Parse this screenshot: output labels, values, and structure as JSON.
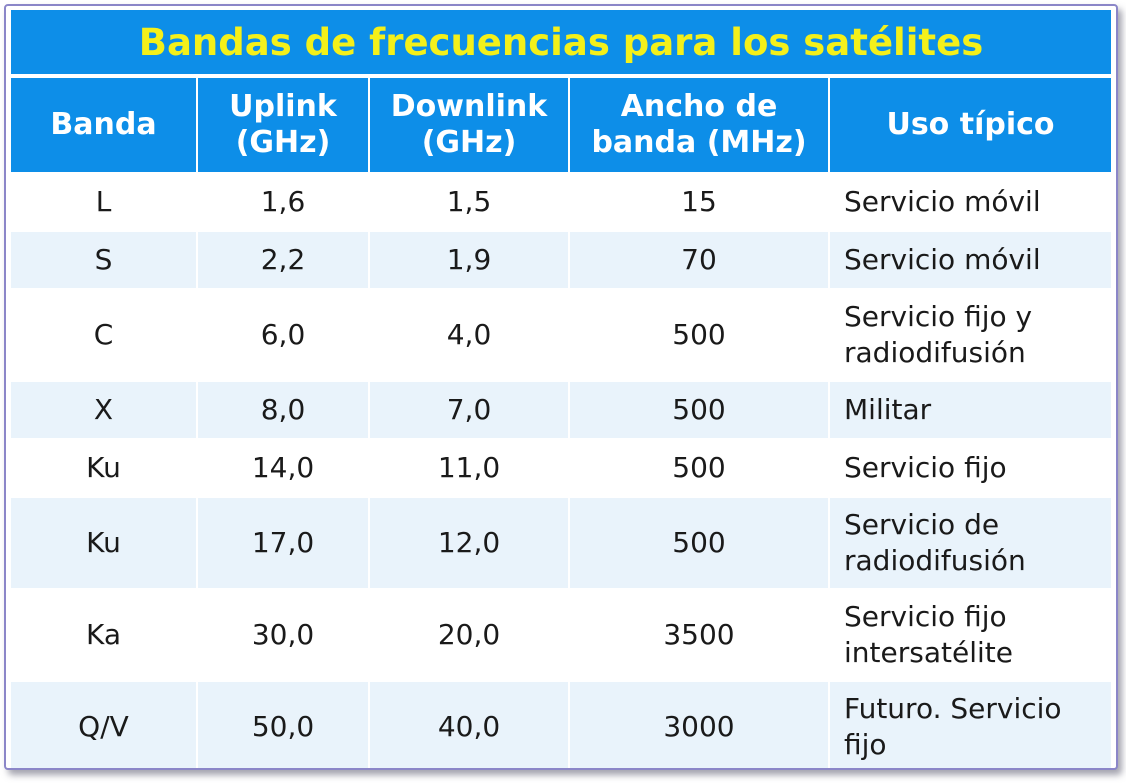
{
  "title": "Bandas de frecuencias para los satélites",
  "headers": [
    "Banda",
    "Uplink\n(GHz)",
    "Downlink\n(GHz)",
    "Ancho de\nbanda (MHz)",
    "Uso típico"
  ],
  "rows": [
    {
      "band": "L",
      "uplink": "1,6",
      "downlink": "1,5",
      "bandwidth": "15",
      "use": "Servicio móvil"
    },
    {
      "band": "S",
      "uplink": "2,2",
      "downlink": "1,9",
      "bandwidth": "70",
      "use": "Servicio móvil"
    },
    {
      "band": "C",
      "uplink": "6,0",
      "downlink": "4,0",
      "bandwidth": "500",
      "use": "Servicio fijo y\nradiodifusión"
    },
    {
      "band": "X",
      "uplink": "8,0",
      "downlink": "7,0",
      "bandwidth": "500",
      "use": "Militar"
    },
    {
      "band": "Ku",
      "uplink": "14,0",
      "downlink": "11,0",
      "bandwidth": "500",
      "use": "Servicio fijo"
    },
    {
      "band": "Ku",
      "uplink": "17,0",
      "downlink": "12,0",
      "bandwidth": "500",
      "use": "Servicio de\nradiodifusión"
    },
    {
      "band": "Ka",
      "uplink": "30,0",
      "downlink": "20,0",
      "bandwidth": "3500",
      "use": "Servicio fijo\nintersatélite"
    },
    {
      "band": "Q/V",
      "uplink": "50,0",
      "downlink": "40,0",
      "bandwidth": "3000",
      "use": "Futuro. Servicio\nfijo"
    }
  ],
  "colors": {
    "header_bg": "#0d8ee8",
    "title_text": "#f4f01a",
    "header_text": "#ffffff",
    "row_alt_bg": "#e9f3fb",
    "frame_border": "#8b86c8"
  }
}
